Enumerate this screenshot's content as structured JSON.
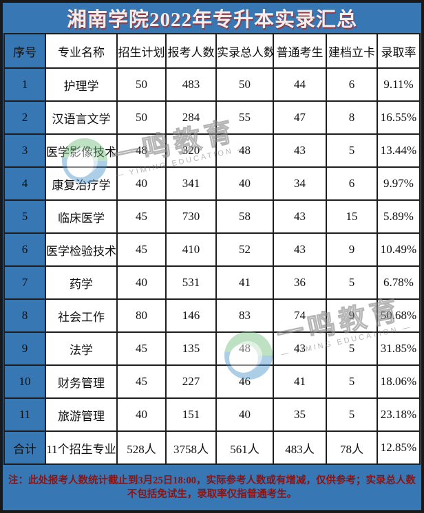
{
  "title": "湘南学院2022年专升本实录汇总",
  "note": "注：此处报考人数统计截止到3月25日18:00，实际参考人数或有增减，仅供参考；实录总人数不包括免试生，录取率仅指普通考生。",
  "colors": {
    "bar_blue": "#3677b4",
    "frame_dark": "#191919",
    "grid_line": "#1d1d1d",
    "title_text": "#f8ecea",
    "note_red": "#8a1414"
  },
  "watermark": {
    "brand": "一鸣教育",
    "brand_en": "— YIMING EDUCATION —"
  },
  "chart_data": {
    "type": "table",
    "title": "湘南学院2022年专升本实录汇总",
    "headers": [
      "序号",
      "专业名称",
      "招生计划",
      "报考人数",
      "实录总人数",
      "普通考生",
      "建档立卡",
      "录取率"
    ],
    "rows": [
      [
        "1",
        "护理学",
        "50",
        "483",
        "50",
        "44",
        "6",
        "9.11%"
      ],
      [
        "2",
        "汉语言文学",
        "50",
        "284",
        "55",
        "47",
        "8",
        "16.55%"
      ],
      [
        "3",
        "医学影像技术",
        "48",
        "320",
        "48",
        "43",
        "5",
        "13.44%"
      ],
      [
        "4",
        "康复治疗学",
        "40",
        "341",
        "40",
        "34",
        "6",
        "9.97%"
      ],
      [
        "5",
        "临床医学",
        "45",
        "730",
        "58",
        "43",
        "15",
        "5.89%"
      ],
      [
        "6",
        "医学检验技术",
        "45",
        "410",
        "52",
        "43",
        "9",
        "10.49%"
      ],
      [
        "7",
        "药学",
        "40",
        "531",
        "41",
        "36",
        "5",
        "6.78%"
      ],
      [
        "8",
        "社会工作",
        "80",
        "146",
        "83",
        "74",
        "9",
        "50.68%"
      ],
      [
        "9",
        "法学",
        "45",
        "135",
        "48",
        "43",
        "5",
        "31.85%"
      ],
      [
        "10",
        "财务管理",
        "45",
        "227",
        "46",
        "41",
        "5",
        "18.06%"
      ],
      [
        "11",
        "旅游管理",
        "40",
        "151",
        "40",
        "35",
        "5",
        "23.18%"
      ],
      [
        "合计",
        "11个招生专业",
        "528人",
        "3758人",
        "561人",
        "483人",
        "78人",
        "12.85%"
      ]
    ]
  },
  "table": {
    "headers": [
      "序号",
      "专业名称",
      "招生计划",
      "报考人数",
      "实录总人数",
      "普通考生",
      "建档立卡",
      "录取率"
    ],
    "rows": [
      [
        "1",
        "护理学",
        "50",
        "483",
        "50",
        "44",
        "6",
        "9.11%"
      ],
      [
        "2",
        "汉语言文学",
        "50",
        "284",
        "55",
        "47",
        "8",
        "16.55%"
      ],
      [
        "3",
        "医学影像技术",
        "48",
        "320",
        "48",
        "43",
        "5",
        "13.44%"
      ],
      [
        "4",
        "康复治疗学",
        "40",
        "341",
        "40",
        "34",
        "6",
        "9.97%"
      ],
      [
        "5",
        "临床医学",
        "45",
        "730",
        "58",
        "43",
        "15",
        "5.89%"
      ],
      [
        "6",
        "医学检验技术",
        "45",
        "410",
        "52",
        "43",
        "9",
        "10.49%"
      ],
      [
        "7",
        "药学",
        "40",
        "531",
        "41",
        "36",
        "5",
        "6.78%"
      ],
      [
        "8",
        "社会工作",
        "80",
        "146",
        "83",
        "74",
        "9",
        "50.68%"
      ],
      [
        "9",
        "法学",
        "45",
        "135",
        "48",
        "43",
        "5",
        "31.85%"
      ],
      [
        "10",
        "财务管理",
        "45",
        "227",
        "46",
        "41",
        "5",
        "18.06%"
      ],
      [
        "11",
        "旅游管理",
        "40",
        "151",
        "40",
        "35",
        "5",
        "23.18%"
      ],
      [
        "合计",
        "11个招生专业",
        "528人",
        "3758人",
        "561人",
        "483人",
        "78人",
        "12.85%"
      ]
    ]
  }
}
